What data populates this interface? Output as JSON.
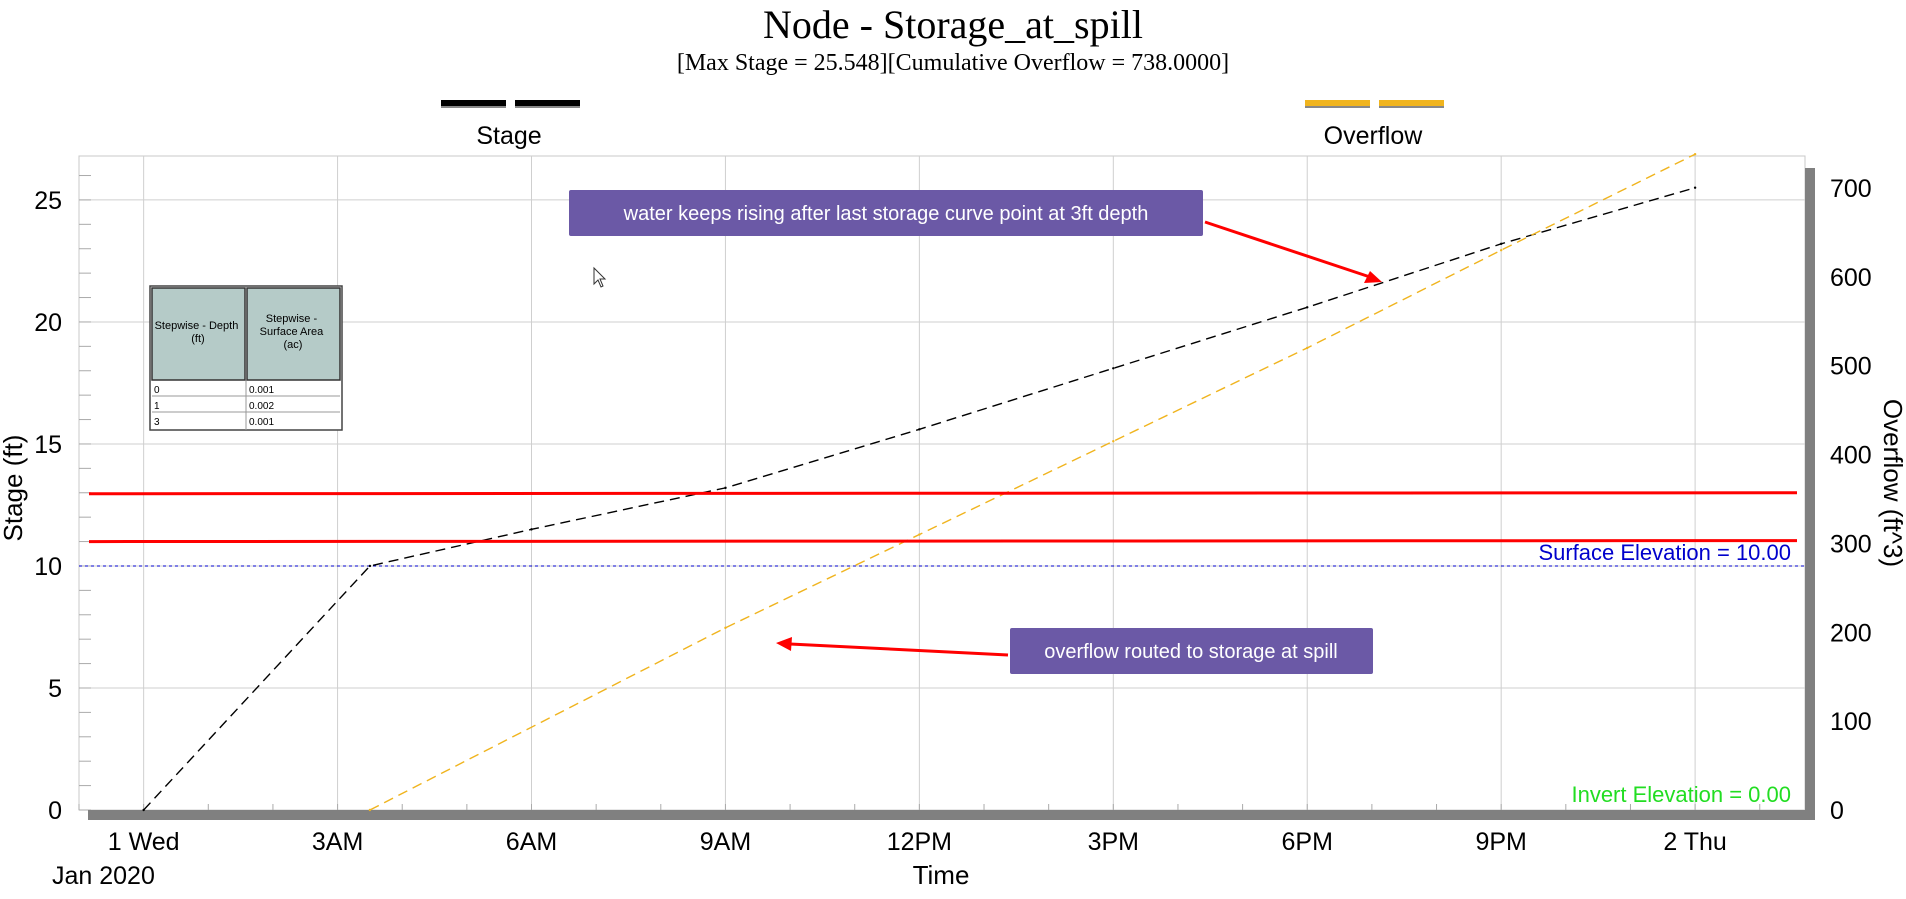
{
  "chart_data": {
    "type": "line",
    "title": "Node - Storage_at_spill",
    "subtitle": "[Max  Stage = 25.548][Cumulative Overflow = 738.0000]",
    "xlabel": "Time",
    "ylabel": "Stage (ft)",
    "y2label": "Overflow (ft^3)",
    "x_tick_labels": [
      "1 Wed",
      "3AM",
      "6AM",
      "9AM",
      "12PM",
      "3PM",
      "6PM",
      "9PM",
      "2 Thu"
    ],
    "x_tick_hours": [
      0,
      3,
      6,
      9,
      12,
      15,
      18,
      21,
      24
    ],
    "x_sublabel": "Jan 2020",
    "xlim_hours": [
      -1,
      25.7
    ],
    "ylim": [
      0,
      26.8
    ],
    "y2lim": [
      0,
      736
    ],
    "y_ticks": [
      0,
      5,
      10,
      15,
      20,
      25
    ],
    "y2_ticks": [
      0,
      100,
      200,
      300,
      400,
      500,
      600,
      700
    ],
    "grid": true,
    "legend": [
      {
        "name": "Stage",
        "color": "#000000",
        "position": "top-left"
      },
      {
        "name": "Overflow",
        "color": "#f0b41e",
        "position": "top-right"
      }
    ],
    "series": [
      {
        "name": "Stage",
        "axis": "left",
        "color": "#000000",
        "style": "dashed",
        "x_hours": [
          0,
          3.5,
          6,
          9,
          12,
          15,
          18,
          21,
          24
        ],
        "values": [
          0,
          10.0,
          11.5,
          13.2,
          15.6,
          18.1,
          20.6,
          23.2,
          25.5
        ]
      },
      {
        "name": "Overflow",
        "axis": "right",
        "color": "#f0b41e",
        "style": "dashed",
        "x_hours": [
          3.5,
          9,
          12,
          15,
          18,
          21,
          24
        ],
        "values": [
          0,
          205,
          310,
          415,
          520,
          630,
          738
        ]
      }
    ],
    "reference_lines": [
      {
        "label": "Surface Elevation = 10.00",
        "value": 10,
        "color": "#0000cc",
        "style": "dotted"
      },
      {
        "label": "Invert Elevation = 0.00",
        "value": 0,
        "color": "#22dd22",
        "style": "none"
      }
    ],
    "annotation_lines": [
      {
        "value": 12.96,
        "color": "#ff0000"
      },
      {
        "value": 11.0,
        "color": "#ff0000"
      }
    ],
    "annotations": [
      {
        "text": "water keeps rising after last storage curve point at 3ft depth",
        "color": "#6b59a6"
      },
      {
        "text": "overflow routed to storage at spill",
        "color": "#6b59a6"
      }
    ],
    "overlay_table": {
      "headers": [
        "Stepwise - Depth (ft)",
        "Stepwise - Surface Area (ac)"
      ],
      "rows": [
        [
          "0",
          "0.001"
        ],
        [
          "1",
          "0.002"
        ],
        [
          "3",
          "0.001"
        ]
      ]
    },
    "cursor_icon": "mouse-pointer-icon"
  }
}
